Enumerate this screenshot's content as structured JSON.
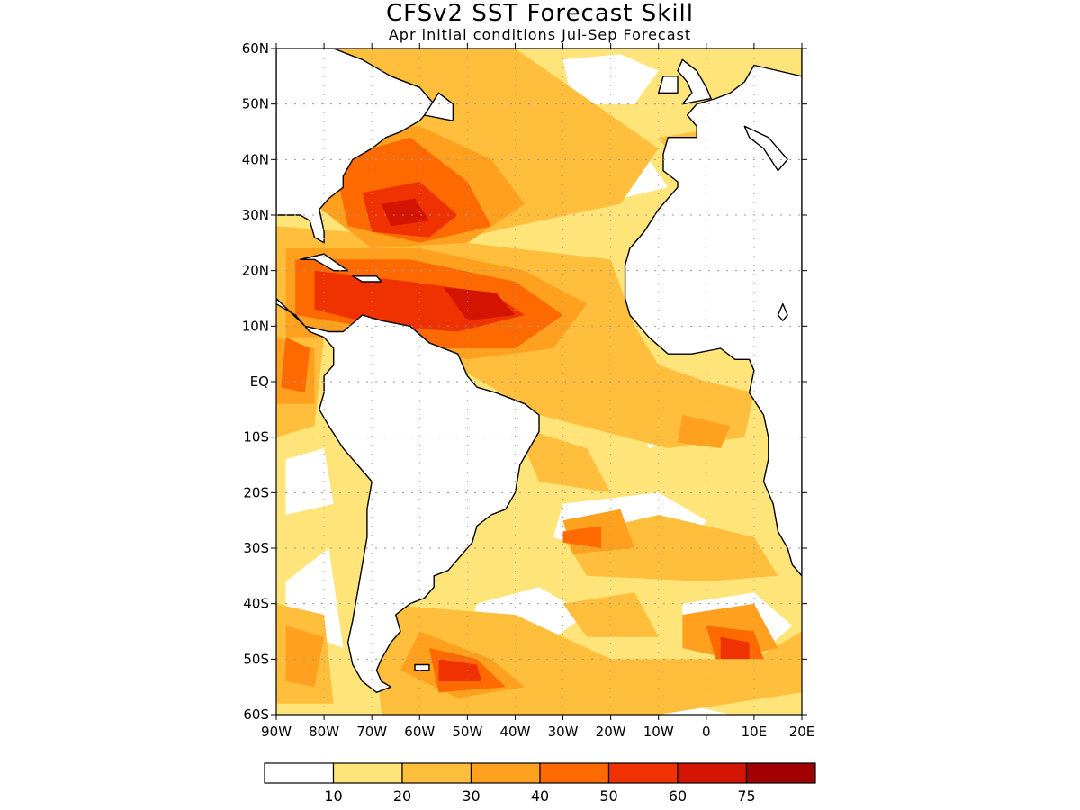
{
  "title": "CFSv2 SST Forecast Skill",
  "subtitle": "Apr initial conditions  Jul-Sep Forecast",
  "map": {
    "lat_labels": [
      "60N",
      "50N",
      "40N",
      "30N",
      "20N",
      "10N",
      "EQ",
      "10S",
      "20S",
      "30S",
      "40S",
      "50S",
      "60S"
    ],
    "lon_labels": [
      "90W",
      "80W",
      "70W",
      "60W",
      "50W",
      "40W",
      "30W",
      "20W",
      "10W",
      "0",
      "10E",
      "20E"
    ],
    "lat_range": [
      -60,
      60
    ],
    "lon_range": [
      -90,
      20
    ],
    "grid": "dotted",
    "land_color": "#ffffff",
    "coastline_color": "#000000"
  },
  "colorbar": {
    "thresholds": [
      "10",
      "20",
      "30",
      "40",
      "50",
      "60",
      "75"
    ],
    "colors": [
      "#ffffff",
      "#ffe47a",
      "#ffbf3c",
      "#ffa01e",
      "#ff6a00",
      "#f03200",
      "#d21400",
      "#a00000"
    ]
  },
  "skill_regions": [
    {
      "level": 1,
      "desc": "broad"
    },
    {
      "level": 2
    },
    {
      "level": 3
    },
    {
      "level": 4
    },
    {
      "level": 5
    },
    {
      "level": 6
    }
  ]
}
